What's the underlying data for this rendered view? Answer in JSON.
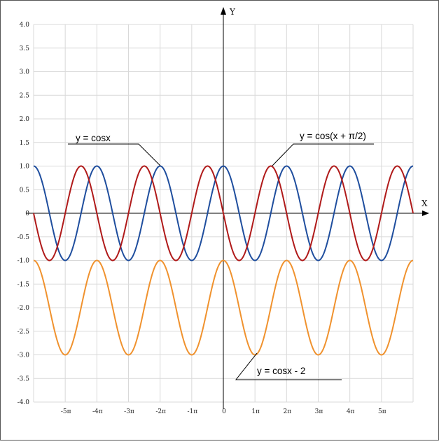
{
  "chart_data": {
    "type": "line",
    "title": "",
    "xlabel": "X",
    "ylabel": "Y",
    "xlim": [
      -18.85,
      18.85
    ],
    "ylim": [
      -4.0,
      4.0
    ],
    "grid": true,
    "x_tick_labels": [
      "-5π",
      "-4π",
      "-3π",
      "-2π",
      "-1π",
      "0",
      "1π",
      "2π",
      "3π",
      "4π",
      "5π"
    ],
    "x_tick_values": [
      -15.708,
      -12.566,
      -9.425,
      -6.283,
      -3.142,
      0,
      3.142,
      6.283,
      9.425,
      12.566,
      15.708
    ],
    "y_tick_labels": [
      "4.0",
      "3.5",
      "3.0",
      "2.5",
      "2.0",
      "1.5",
      "1.0",
      "0.5",
      "0",
      "-0.5",
      "-1.0",
      "-1.5",
      "-2.0",
      "-2.5",
      "-3.0",
      "-3.5",
      "-4.0"
    ],
    "y_tick_values": [
      4.0,
      3.5,
      3.0,
      2.5,
      2.0,
      1.5,
      1.0,
      0.5,
      0,
      -0.5,
      -1.0,
      -1.5,
      -2.0,
      -2.5,
      -3.0,
      -3.5,
      -4.0
    ],
    "series": [
      {
        "name": "y = cosx",
        "expression": "cos(x)",
        "color": "#1f4e9e"
      },
      {
        "name": "y = cos(x + π/2)",
        "expression": "cos(x + pi/2)",
        "color": "#b01a1a"
      },
      {
        "name": "y = cosx - 2",
        "expression": "cos(x) - 2",
        "color": "#f0922e"
      }
    ],
    "annotations": [
      {
        "text": "y = cosx",
        "series": 0
      },
      {
        "text": "y = cos(x + π/2)",
        "series": 1
      },
      {
        "text": "y = cosx - 2",
        "series": 2
      }
    ]
  }
}
